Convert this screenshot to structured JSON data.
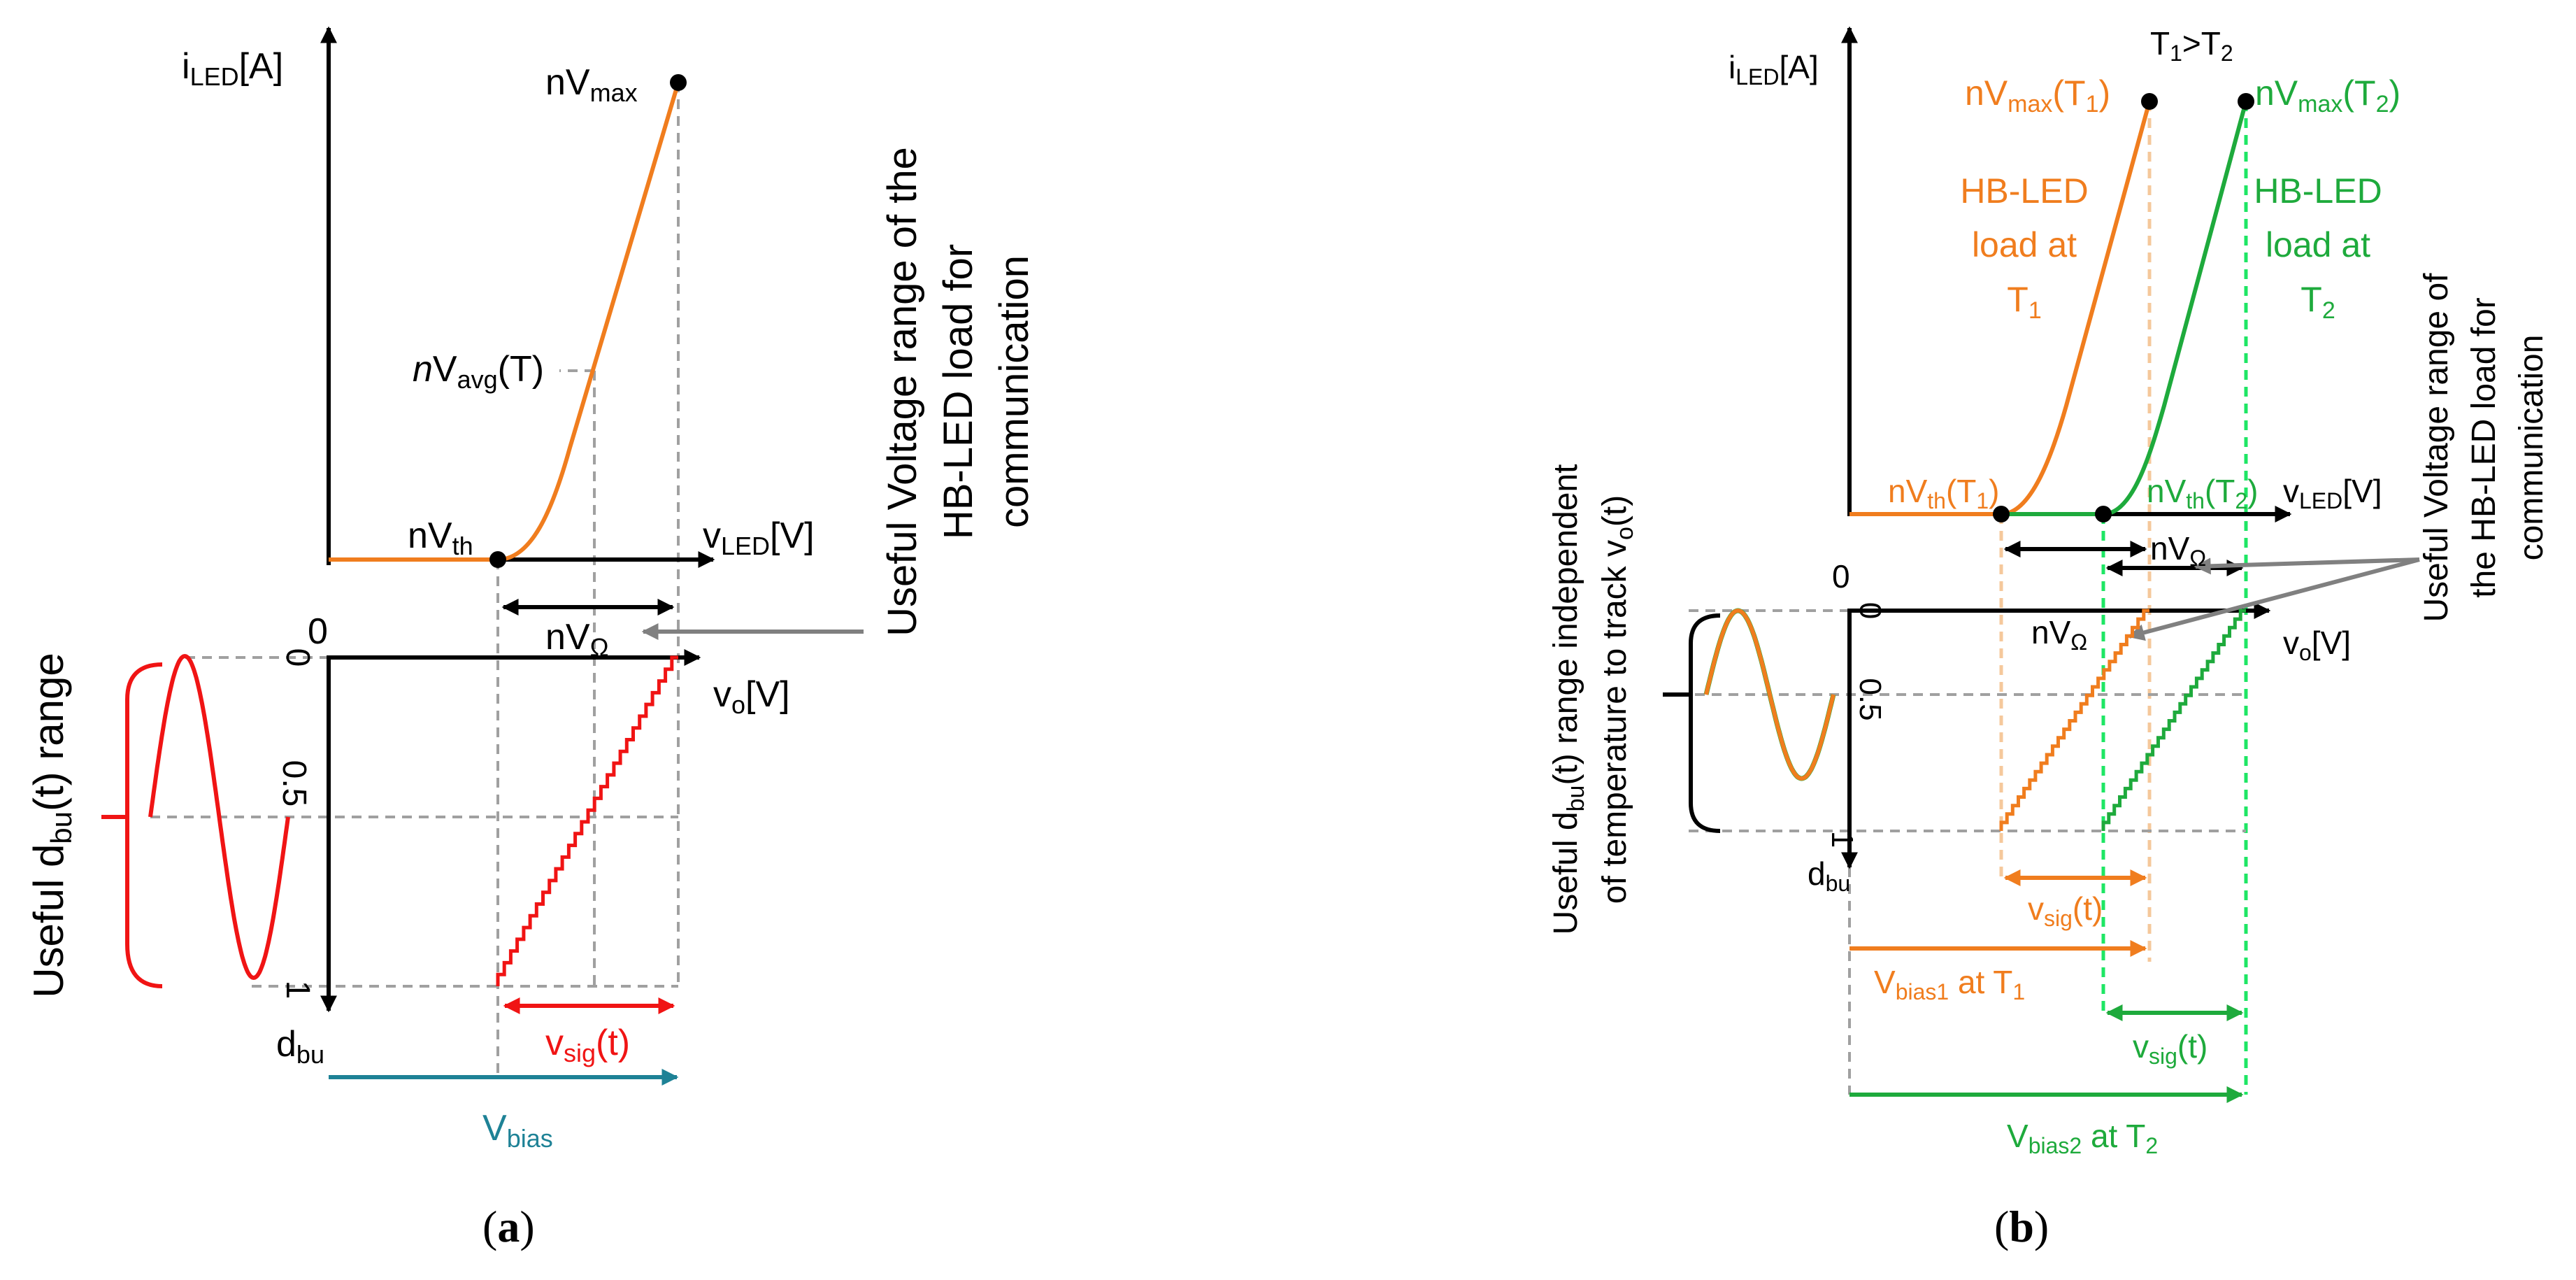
{
  "colors": {
    "orange": "#F07D1E",
    "green": "#1EAA3C",
    "red": "#F01414",
    "teal": "#1E8296",
    "black": "#000000",
    "gray": "#808080",
    "grid": "#A0A0A0"
  },
  "panel_a": {
    "caption": {
      "open": "(",
      "letter": "a",
      "close": ")"
    },
    "y_axis": {
      "var": "i",
      "sub": "LED",
      "unit": "[A]"
    },
    "x_axis": {
      "var": "v",
      "sub": "LED",
      "unit": "[V]"
    },
    "vo_axis": {
      "var": "v",
      "sub": "o",
      "unit": "[V]"
    },
    "dbu_axis": {
      "var": "d",
      "sub": "bu"
    },
    "nvmax": {
      "prefix": "nV",
      "sub": "max"
    },
    "nvavg": {
      "prefix": "n",
      "mid": "V",
      "sub": "avg",
      "suffix": "(T)"
    },
    "nvth": {
      "prefix": "nV",
      "sub": "th"
    },
    "nvomega": {
      "prefix": "nV",
      "sub": "Ω"
    },
    "useful_range": {
      "prefix": "Useful d",
      "sub": "bu",
      "suffix": "(t) range"
    },
    "voltage_note": {
      "line1": "Useful Voltage range of the",
      "line2": "HB-LED load for",
      "line3": "communication"
    },
    "vsig": {
      "prefix": "v",
      "sub": "sig",
      "suffix": "(t)"
    },
    "vbias": {
      "prefix": "V",
      "sub": "bias"
    },
    "tick_zero": "0",
    "tick_half": "0.5",
    "tick_one": "1"
  },
  "panel_b": {
    "caption": {
      "open": "(",
      "letter": "b",
      "close": ")"
    },
    "y_axis": {
      "var": "i",
      "sub": "LED",
      "unit": "[A]"
    },
    "x_axis": {
      "var": "v",
      "sub": "LED",
      "unit": "[V]"
    },
    "vo_axis": {
      "var": "v",
      "sub": "o",
      "unit": "[V]"
    },
    "dbu_axis": {
      "var": "d",
      "sub": "bu"
    },
    "t_relation": {
      "t1": "T",
      "sub1": "1",
      "gt": ">T",
      "sub2": "2"
    },
    "nvmax_t1": {
      "prefix": "nV",
      "sub": "max",
      "suffix": "(T",
      "tsub": "1",
      "close": ")"
    },
    "nvmax_t2": {
      "prefix": "nV",
      "sub": "max",
      "suffix": "(T",
      "tsub": "2",
      "close": ")"
    },
    "load_t1": {
      "line1": "HB-LED",
      "line2": "load  at",
      "line3": "T",
      "sub": "1"
    },
    "load_t2": {
      "line1": "HB-LED",
      "line2": "load at",
      "line3": "T",
      "sub": "2"
    },
    "nvth_t1": {
      "prefix": "nV",
      "sub": "th",
      "suffix": "(T",
      "tsub": "1",
      "close": ")"
    },
    "nvth_t2": {
      "prefix": "nV",
      "sub": "th",
      "suffix": "(T",
      "tsub": "2",
      "close": ")"
    },
    "nvomega": {
      "prefix": "nV",
      "sub": "Ω"
    },
    "voltage_note": {
      "line1": "Useful Voltage range of",
      "line2": "the HB-LED load for",
      "line3": "communication"
    },
    "dbu_note": {
      "line1_prefix": "Useful d",
      "line1_sub": "bu",
      "line1_suffix": "(t) range independent",
      "line2_prefix": "of temperature to track v",
      "line2_sub": "o",
      "line2_suffix": "(t)"
    },
    "vsig_orange": {
      "prefix": "v",
      "sub": "sig",
      "suffix": "(t)"
    },
    "vsig_green": {
      "prefix": "v",
      "sub": "sig",
      "suffix": "(t)"
    },
    "vbias1": {
      "prefix": "V",
      "sub": "bias1",
      "suffix": " at T",
      "tsub": "1"
    },
    "vbias2": {
      "prefix": "V",
      "sub": "bias2",
      "suffix": " at T",
      "tsub": "2"
    },
    "tick_zero": "0",
    "tick_half": "0.5",
    "tick_one": "1"
  }
}
